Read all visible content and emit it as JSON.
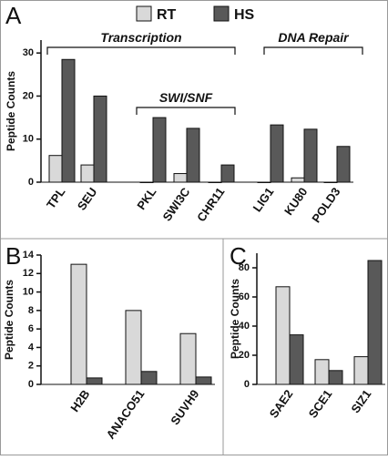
{
  "chart_data": [
    {
      "type": "bar",
      "panel": "A",
      "y_label": "Peptide Counts",
      "categories": [
        "TPL",
        "SEU",
        "PKL",
        "SWI3C",
        "CHR11",
        "LIG1",
        "KU80",
        "POLD3"
      ],
      "series": [
        {
          "name": "RT",
          "color": "#d9d9d9",
          "values": [
            6.2,
            4,
            0,
            2,
            0,
            0,
            1,
            0
          ]
        },
        {
          "name": "HS",
          "color": "#595959",
          "values": [
            28.5,
            20,
            15,
            12.5,
            4,
            13.3,
            12.3,
            8.3
          ]
        }
      ],
      "annotations": [
        "Transcription",
        "SWI/SNF",
        "DNA Repair"
      ],
      "ylim": [
        0,
        33
      ],
      "yticks": [
        0,
        10,
        20,
        30
      ]
    },
    {
      "type": "bar",
      "panel": "B",
      "y_label": "Peptide Counts",
      "categories": [
        "H2B",
        "ANACO51",
        "SUVH9"
      ],
      "series": [
        {
          "color": "#d9d9d9",
          "values": [
            13,
            8,
            5.5
          ]
        },
        {
          "color": "#595959",
          "values": [
            0.7,
            1.4,
            0.8
          ]
        }
      ],
      "ylim": [
        0,
        14
      ],
      "yticks": [
        0,
        2,
        4,
        6,
        8,
        10,
        12,
        14
      ]
    },
    {
      "type": "bar",
      "panel": "C",
      "y_label": "Peptide Counts",
      "categories": [
        "SAE2",
        "SCE1",
        "SIZ1"
      ],
      "series": [
        {
          "color": "#d9d9d9",
          "values": [
            67,
            17,
            19
          ]
        },
        {
          "color": "#595959",
          "values": [
            34,
            9.5,
            85
          ]
        }
      ],
      "ylim": [
        0,
        90
      ],
      "yticks": [
        0,
        20,
        40,
        60,
        80
      ]
    }
  ]
}
